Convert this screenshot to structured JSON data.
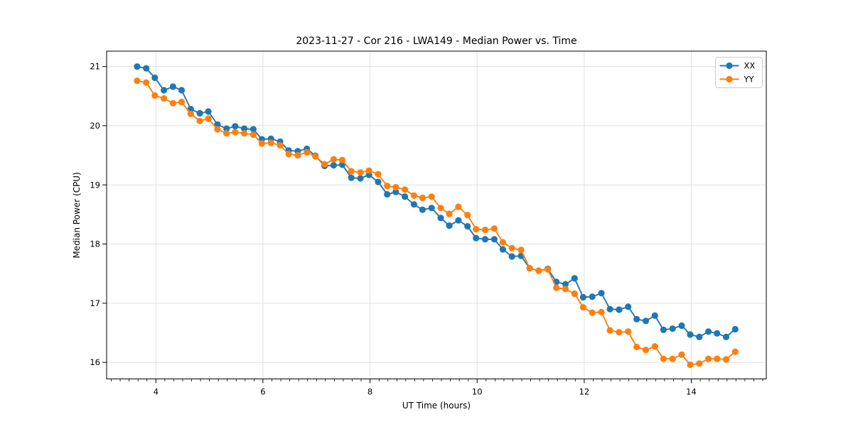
{
  "figure": {
    "background": "#ffffff"
  },
  "chart_data": {
    "type": "line",
    "title": "2023-11-27 - Cor 216 - LWA149 - Median Power vs. Time",
    "xlabel": "UT Time (hours)",
    "ylabel": "Median Power (CPU)",
    "xlim": [
      3.08,
      15.4
    ],
    "ylim": [
      15.72,
      21.26
    ],
    "xticks": [
      4,
      6,
      8,
      10,
      12,
      14
    ],
    "yticks": [
      16,
      17,
      18,
      19,
      20,
      21
    ],
    "x_minor_step": 0.166667,
    "grid": true,
    "grid_color": "#dcdcdc",
    "spine_color": "#000000",
    "legend": {
      "position": "upper-right",
      "entries": [
        "XX",
        "YY"
      ]
    },
    "x": [
      3.65,
      3.82,
      3.98,
      4.15,
      4.32,
      4.48,
      4.65,
      4.82,
      4.98,
      5.15,
      5.32,
      5.48,
      5.65,
      5.82,
      5.98,
      6.15,
      6.32,
      6.48,
      6.65,
      6.82,
      6.98,
      7.15,
      7.32,
      7.48,
      7.65,
      7.82,
      7.98,
      8.15,
      8.32,
      8.48,
      8.65,
      8.82,
      8.98,
      9.15,
      9.32,
      9.48,
      9.65,
      9.82,
      9.98,
      10.15,
      10.32,
      10.48,
      10.65,
      10.82,
      10.98,
      11.15,
      11.32,
      11.48,
      11.65,
      11.82,
      11.98,
      12.15,
      12.32,
      12.48,
      12.65,
      12.82,
      12.98,
      13.15,
      13.32,
      13.48,
      13.65,
      13.82,
      13.98,
      14.15,
      14.32,
      14.48,
      14.65,
      14.82
    ],
    "series": [
      {
        "name": "XX",
        "color": "#1f77b4",
        "marker": "circle",
        "values": [
          21.0,
          20.97,
          20.81,
          20.6,
          20.66,
          20.6,
          20.28,
          20.21,
          20.24,
          20.02,
          19.95,
          19.99,
          19.95,
          19.94,
          19.77,
          19.78,
          19.73,
          19.58,
          19.57,
          19.61,
          19.49,
          19.32,
          19.33,
          19.34,
          19.12,
          19.11,
          19.17,
          19.05,
          18.84,
          18.88,
          18.8,
          18.67,
          18.58,
          18.61,
          18.44,
          18.31,
          18.4,
          18.3,
          18.1,
          18.08,
          18.08,
          17.91,
          17.79,
          17.8,
          17.59,
          17.55,
          17.58,
          17.36,
          17.32,
          17.42,
          17.1,
          17.11,
          17.17,
          16.9,
          16.89,
          16.94,
          16.73,
          16.7,
          16.79,
          16.55,
          16.57,
          16.62,
          16.47,
          16.43,
          16.52,
          16.49,
          16.43,
          16.56
        ]
      },
      {
        "name": "YY",
        "color": "#ff7f0e",
        "marker": "circle",
        "values": [
          20.76,
          20.73,
          20.51,
          20.46,
          20.38,
          20.4,
          20.2,
          20.08,
          20.12,
          19.94,
          19.87,
          19.89,
          19.87,
          19.85,
          19.7,
          19.71,
          19.67,
          19.52,
          19.5,
          19.55,
          19.48,
          19.35,
          19.43,
          19.42,
          19.23,
          19.21,
          19.24,
          19.18,
          18.98,
          18.96,
          18.92,
          18.82,
          18.78,
          18.8,
          18.61,
          18.51,
          18.63,
          18.49,
          18.25,
          18.24,
          18.26,
          18.03,
          17.93,
          17.9,
          17.59,
          17.55,
          17.57,
          17.26,
          17.24,
          17.16,
          16.93,
          16.84,
          16.85,
          16.54,
          16.51,
          16.52,
          16.26,
          16.21,
          16.27,
          16.06,
          16.06,
          16.13,
          15.96,
          15.98,
          16.06,
          16.06,
          16.05,
          16.18
        ]
      }
    ]
  }
}
